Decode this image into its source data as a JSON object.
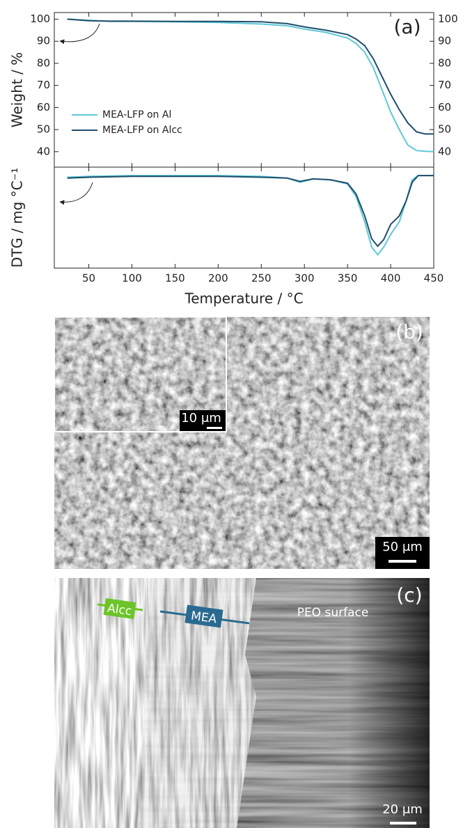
{
  "chart_data": [
    {
      "type": "line",
      "panel_label": "(a)",
      "y_label": "Weight / %",
      "x": [
        25,
        50,
        75,
        100,
        150,
        200,
        250,
        280,
        300,
        325,
        350,
        360,
        370,
        380,
        390,
        400,
        410,
        420,
        430,
        440,
        450
      ],
      "series": [
        {
          "name": "MEA-LFP on Al",
          "color": "#5cc8d6",
          "values": [
            100,
            99.5,
            99,
            99,
            98.8,
            98.5,
            97.8,
            97,
            95.5,
            94,
            91.5,
            89,
            85,
            78,
            68,
            58,
            50,
            43,
            40.5,
            40.2,
            40
          ]
        },
        {
          "name": "MEA-LFP on Alcc",
          "color": "#1f4e6b",
          "values": [
            100,
            99.3,
            99.1,
            99.1,
            99,
            99,
            98.8,
            98,
            96.5,
            95,
            93,
            91,
            88,
            82,
            74,
            66,
            59,
            53,
            49,
            48,
            48
          ]
        }
      ],
      "xlim": [
        10,
        450
      ],
      "xticks": [
        50,
        100,
        150,
        200,
        250,
        300,
        350,
        400,
        450
      ],
      "ylim": [
        33,
        103
      ],
      "yticks": [
        40,
        50,
        60,
        70,
        80,
        90,
        100
      ],
      "mirror_y_labels": true,
      "show_x_tick_labels": false,
      "legend": "lower-left"
    },
    {
      "type": "line",
      "y_label": "DTG / mg °C⁻¹",
      "x_label": "Temperature / °C",
      "x": [
        25,
        50,
        100,
        200,
        250,
        280,
        295,
        310,
        330,
        350,
        360,
        370,
        378,
        385,
        392,
        400,
        410,
        418,
        425,
        432,
        450
      ],
      "series": [
        {
          "name": "MEA-LFP on Al",
          "color": "#5cc8d6",
          "values": [
            -0.02,
            -0.01,
            0,
            0,
            -0.01,
            -0.03,
            -0.08,
            -0.04,
            -0.05,
            -0.1,
            -0.25,
            -0.55,
            -0.85,
            -0.94,
            -0.85,
            -0.7,
            -0.55,
            -0.3,
            -0.05,
            0,
            0
          ]
        },
        {
          "name": "MEA-LFP on Alcc",
          "color": "#1f4e6b",
          "values": [
            -0.03,
            -0.02,
            -0.01,
            -0.01,
            -0.02,
            -0.03,
            -0.07,
            -0.04,
            -0.05,
            -0.09,
            -0.22,
            -0.48,
            -0.75,
            -0.84,
            -0.76,
            -0.58,
            -0.48,
            -0.3,
            -0.08,
            0,
            0
          ]
        }
      ],
      "xlim": [
        10,
        450
      ],
      "xticks": [
        50,
        100,
        150,
        200,
        250,
        300,
        350,
        400,
        450
      ],
      "ylim": [
        -1.1,
        0.1
      ],
      "show_x_tick_labels": true
    }
  ],
  "images": [
    {
      "panel_label": "(b)",
      "inset_scale": "10 μm",
      "scale": "50 μm"
    },
    {
      "panel_label": "(c)",
      "layer_alcc": "Alcc",
      "layer_mea": "MEA",
      "surface": "PEO surface",
      "scale": "20 μm"
    }
  ]
}
